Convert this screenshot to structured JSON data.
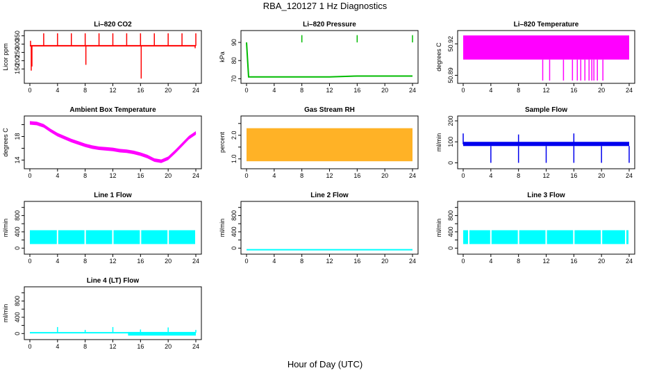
{
  "page": {
    "title": "RBA_120127  1 Hz Diagnostics",
    "xlabel": "Hour of Day (UTC)"
  },
  "chart_data": [
    {
      "id": "co2",
      "type": "line",
      "title": "Li–820 CO2",
      "ylabel": "Licor ppm",
      "color": "#ff0000",
      "xlim": [
        0,
        24
      ],
      "xticks": [
        0,
        4,
        8,
        12,
        16,
        20,
        24
      ],
      "ylim": [
        80,
        365
      ],
      "yticks": [
        150,
        200,
        250,
        300,
        350
      ],
      "series": [
        {
          "x": [
            0,
            2,
            4,
            6,
            8,
            10,
            12,
            14,
            16,
            18,
            20,
            22,
            24
          ],
          "values": [
            290,
            290,
            290,
            290,
            290,
            290,
            290,
            290,
            290,
            290,
            290,
            290,
            290
          ]
        }
      ],
      "spikes_up": [
        [
          0.1,
          320
        ],
        [
          2,
          365
        ],
        [
          4,
          365
        ],
        [
          6,
          365
        ],
        [
          8,
          365
        ],
        [
          10,
          365
        ],
        [
          12,
          365
        ],
        [
          14,
          365
        ],
        [
          16,
          365
        ],
        [
          18,
          365
        ],
        [
          20,
          365
        ],
        [
          22,
          365
        ],
        [
          24,
          365
        ]
      ],
      "spikes_down": [
        [
          0.2,
          140
        ],
        [
          0.3,
          165
        ],
        [
          8.1,
          175
        ],
        [
          16.1,
          92
        ],
        [
          23.9,
          275
        ]
      ]
    },
    {
      "id": "pressure",
      "type": "line",
      "title": "Li–820 Pressure",
      "ylabel": "kPa",
      "color": "#00bb00",
      "xlim": [
        0,
        24
      ],
      "xticks": [
        0,
        4,
        8,
        12,
        16,
        20,
        24
      ],
      "ylim": [
        69,
        95
      ],
      "yticks": [
        70,
        80,
        90
      ],
      "series": [
        {
          "x": [
            0,
            0.3,
            4,
            8,
            12,
            16,
            20,
            24
          ],
          "values": [
            90,
            71,
            71,
            71,
            71,
            71.5,
            71.5,
            71.5
          ]
        }
      ],
      "spikes_up": [
        [
          8,
          94
        ],
        [
          16,
          94
        ],
        [
          24,
          94
        ]
      ]
    },
    {
      "id": "licor_temp",
      "type": "area",
      "title": "Li–820 Temperature",
      "ylabel": "degrees C",
      "color": "#ff00ff",
      "xlim": [
        0,
        24
      ],
      "xticks": [
        0,
        4,
        8,
        12,
        16,
        20,
        24
      ],
      "ylim": [
        50.885,
        50.93
      ],
      "yticks": [
        50.89,
        50.92
      ],
      "ytick_labels": [
        "50.89",
        "50.92"
      ],
      "ytick_minor": [
        "50.89",
        "50.92"
      ],
      "band": [
        50.905,
        50.928
      ],
      "spikes_down": [
        [
          11.5,
          50.885
        ],
        [
          12.5,
          50.885
        ],
        [
          14.5,
          50.885
        ],
        [
          15.8,
          50.885
        ],
        [
          16.5,
          50.885
        ],
        [
          17,
          50.885
        ],
        [
          17.6,
          50.885
        ],
        [
          18.2,
          50.885
        ],
        [
          18.6,
          50.885
        ],
        [
          18.9,
          50.885
        ],
        [
          19.4,
          50.885
        ],
        [
          20.2,
          50.885
        ]
      ]
    },
    {
      "id": "ambient_temp",
      "type": "line",
      "title": "Ambient Box Temperature",
      "ylabel": "degrees C",
      "color": "#ff00ff",
      "xlim": [
        0,
        24
      ],
      "xticks": [
        0,
        4,
        8,
        12,
        16,
        20,
        24
      ],
      "ylim": [
        13,
        21
      ],
      "yticks": [
        14,
        16,
        18,
        20
      ],
      "ytick_labels": [
        "14",
        "",
        "18",
        ""
      ],
      "series": [
        {
          "x": [
            0,
            1,
            2,
            3,
            4,
            5,
            6,
            7,
            8,
            9,
            10,
            11,
            12,
            13,
            14,
            15,
            16,
            17,
            18,
            19,
            20,
            21,
            22,
            23,
            24
          ],
          "values": [
            20.3,
            20.2,
            19.8,
            19.0,
            18.3,
            17.8,
            17.3,
            16.9,
            16.5,
            16.2,
            16.0,
            15.9,
            15.8,
            15.6,
            15.5,
            15.3,
            15.0,
            14.6,
            14.0,
            13.8,
            14.3,
            15.4,
            16.6,
            17.8,
            18.6
          ]
        }
      ],
      "band_halfwidth": 0.3
    },
    {
      "id": "rh",
      "type": "area",
      "title": "Gas Stream RH",
      "ylabel": "percent",
      "color": "#ffa500",
      "xlim": [
        0,
        24
      ],
      "xticks": [
        0,
        4,
        8,
        12,
        16,
        20,
        24
      ],
      "ylim": [
        0.7,
        2.7
      ],
      "yticks": [
        1.0,
        1.5,
        2.0,
        2.5
      ],
      "ytick_labels": [
        "1.0",
        "",
        "2.0",
        ""
      ],
      "band": [
        0.9,
        2.3
      ]
    },
    {
      "id": "sample_flow",
      "type": "line",
      "title": "Sample Flow",
      "ylabel": "ml/min",
      "color": "#0000ee",
      "xlim": [
        0,
        24
      ],
      "xticks": [
        0,
        4,
        8,
        12,
        16,
        20,
        24
      ],
      "ylim": [
        -15,
        210
      ],
      "yticks": [
        0,
        100,
        200
      ],
      "series": [
        {
          "x": [
            0,
            4,
            8,
            12,
            16,
            20,
            24
          ],
          "values": [
            88,
            88,
            88,
            88,
            88,
            88,
            88
          ]
        }
      ],
      "band": [
        80,
        100
      ],
      "spikes_up": [
        [
          0,
          140
        ],
        [
          8,
          135
        ],
        [
          16,
          140
        ]
      ],
      "spikes_down": [
        [
          4,
          0
        ],
        [
          8,
          0
        ],
        [
          12,
          0
        ],
        [
          16,
          0
        ],
        [
          20,
          0
        ],
        [
          24,
          0
        ]
      ]
    },
    {
      "id": "line1",
      "type": "area",
      "title": "Line 1 Flow",
      "ylabel": "ml/min",
      "color": "#00ffff",
      "xlim": [
        0,
        24
      ],
      "xticks": [
        0,
        4,
        8,
        12,
        16,
        20,
        24
      ],
      "ylim": [
        -80,
        1080
      ],
      "yticks": [
        0,
        200,
        400,
        600,
        800,
        1000
      ],
      "ytick_labels": [
        "0",
        "",
        "400",
        "",
        "800",
        ""
      ],
      "band": [
        100,
        440
      ],
      "gaps": [
        4,
        8,
        12,
        16,
        20
      ]
    },
    {
      "id": "line2",
      "type": "line",
      "title": "Line 2 Flow",
      "ylabel": "ml/min",
      "color": "#00ffff",
      "xlim": [
        0,
        24
      ],
      "xticks": [
        0,
        4,
        8,
        12,
        16,
        20,
        24
      ],
      "ylim": [
        -80,
        1080
      ],
      "yticks": [
        0,
        200,
        400,
        600,
        800,
        1000
      ],
      "ytick_labels": [
        "0",
        "",
        "400",
        "",
        "800",
        ""
      ],
      "series": [
        {
          "x": [
            0,
            24
          ],
          "values": [
            -40,
            -40
          ]
        }
      ]
    },
    {
      "id": "line3",
      "type": "area",
      "title": "Line 3 Flow",
      "ylabel": "ml/min",
      "color": "#00ffff",
      "xlim": [
        0,
        24
      ],
      "xticks": [
        0,
        4,
        8,
        12,
        16,
        20,
        24
      ],
      "ylim": [
        -80,
        1080
      ],
      "yticks": [
        0,
        200,
        400,
        600,
        800,
        1000
      ],
      "ytick_labels": [
        "0",
        "",
        "400",
        "",
        "800",
        ""
      ],
      "band": [
        100,
        440
      ],
      "gaps": [
        0.8,
        4,
        8,
        12,
        16,
        20,
        23.5
      ]
    },
    {
      "id": "line4",
      "type": "line",
      "title": "Line 4 (LT) Flow",
      "ylabel": "ml/min",
      "color": "#00ffff",
      "xlim": [
        0,
        24
      ],
      "xticks": [
        0,
        4,
        8,
        12,
        16,
        20,
        24
      ],
      "ylim": [
        -80,
        1080
      ],
      "yticks": [
        0,
        200,
        400,
        600,
        800,
        1000
      ],
      "ytick_labels": [
        "0",
        "",
        "400",
        "",
        "800",
        ""
      ],
      "series": [
        {
          "x": [
            0,
            14,
            24
          ],
          "values": [
            20,
            20,
            20
          ]
        }
      ],
      "spikes_up": [
        [
          4,
          160
        ],
        [
          8,
          90
        ],
        [
          12,
          160
        ],
        [
          16,
          100
        ],
        [
          20,
          150
        ],
        [
          24,
          90
        ]
      ],
      "noisy_from": 14.2
    }
  ]
}
